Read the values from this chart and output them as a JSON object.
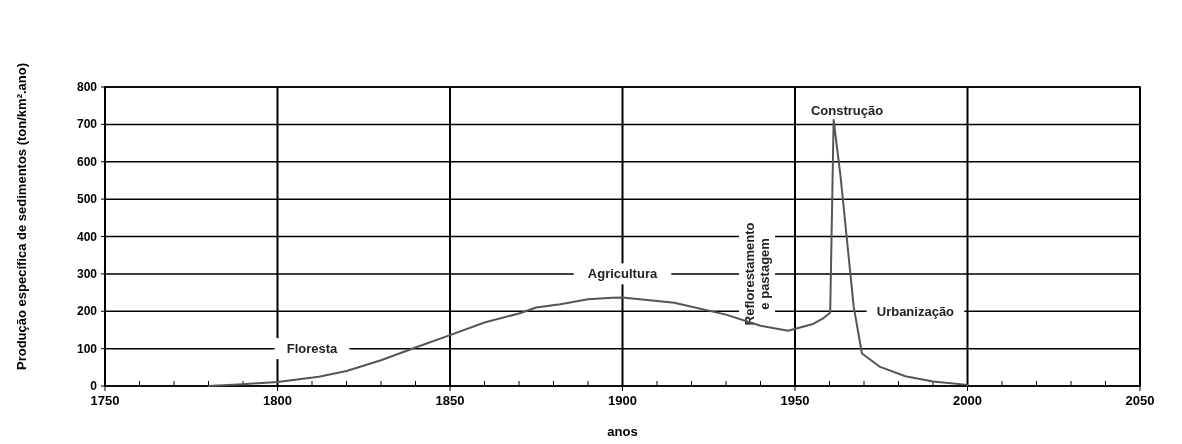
{
  "chart_data": {
    "type": "line",
    "xlabel": "anos",
    "ylabel": "Produção específica de sedimentos (ton/km².ano)",
    "xlim": [
      1750,
      2050
    ],
    "ylim": [
      0,
      800
    ],
    "xticks": [
      1750,
      {
        "value": 1760,
        "label": null
      },
      {
        "value": 1770,
        "label": null
      },
      {
        "value": 1780,
        "label": null
      },
      {
        "value": 1790,
        "label": null
      },
      1800,
      {
        "value": 1810,
        "label": null
      },
      {
        "value": 1820,
        "label": null
      },
      {
        "value": 1830,
        "label": null
      },
      {
        "value": 1840,
        "label": null
      },
      1850,
      {
        "value": 1860,
        "label": null
      },
      {
        "value": 1870,
        "label": null
      },
      {
        "value": 1880,
        "label": null
      },
      {
        "value": 1890,
        "label": null
      },
      1900,
      {
        "value": 1910,
        "label": null
      },
      {
        "value": 1920,
        "label": null
      },
      {
        "value": 1930,
        "label": null
      },
      {
        "value": 1940,
        "label": null
      },
      1950,
      {
        "value": 1960,
        "label": null
      },
      {
        "value": 1970,
        "label": null
      },
      {
        "value": 1980,
        "label": null
      },
      {
        "value": 1990,
        "label": null
      },
      2000,
      {
        "value": 2010,
        "label": null
      },
      {
        "value": 2020,
        "label": null
      },
      {
        "value": 2030,
        "label": null
      },
      {
        "value": 2040,
        "label": null
      },
      2050
    ],
    "yticks": [
      0,
      100,
      200,
      300,
      400,
      500,
      600,
      700,
      800
    ],
    "grid": true,
    "marker": "none",
    "line_style": "solid",
    "series": [
      {
        "color": "#555555",
        "x": [
          1780,
          1790,
          1800,
          1812,
          1820,
          1830,
          1840,
          1850,
          1860,
          1870,
          1875,
          1882,
          1890,
          1897,
          1900,
          1915,
          1930,
          1940,
          1948,
          1955,
          1958,
          1960.2,
          1961.2,
          1963.2,
          1967,
          1969.4,
          1974.5,
          1982,
          1990,
          2000
        ],
        "values": [
          0,
          5,
          11,
          25,
          40,
          69,
          103,
          136,
          170,
          194,
          210,
          219,
          232,
          236,
          237,
          223,
          191,
          161,
          148,
          165,
          180,
          196,
          712,
          561,
          213,
          87,
          52,
          26,
          12,
          3
        ]
      }
    ],
    "annotations": [
      "Floresta",
      "Agricultura",
      "Reflorestamento\ne pastagem",
      "Construção",
      "Urbanização"
    ]
  }
}
